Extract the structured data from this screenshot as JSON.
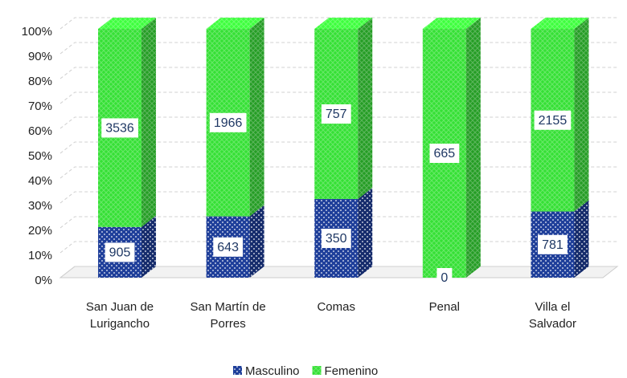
{
  "chart_data": {
    "type": "bar",
    "stacking": "percent",
    "categories": [
      "San Juan de\nLurigancho",
      "San Martín de\nPorres",
      "Comas",
      "Penal",
      "Villa el\nSalvador"
    ],
    "series": [
      {
        "name": "Masculino",
        "color": "#1f3f9a",
        "values": [
          905,
          643,
          350,
          0,
          781
        ]
      },
      {
        "name": "Femenino",
        "color": "#35e035",
        "values": [
          3536,
          1966,
          757,
          665,
          2155
        ]
      }
    ],
    "ylim": [
      0,
      100
    ],
    "yticks": [
      {
        "value": 0,
        "label": "0%"
      },
      {
        "value": 10,
        "label": "10%"
      },
      {
        "value": 20,
        "label": "20%"
      },
      {
        "value": 30,
        "label": "30%"
      },
      {
        "value": 40,
        "label": "40%"
      },
      {
        "value": 50,
        "label": "50%"
      },
      {
        "value": 60,
        "label": "60%"
      },
      {
        "value": 70,
        "label": "70%"
      },
      {
        "value": 80,
        "label": "80%"
      },
      {
        "value": 90,
        "label": "90%"
      },
      {
        "value": 100,
        "label": "100%"
      }
    ],
    "grid": true,
    "legend": "bottom"
  }
}
